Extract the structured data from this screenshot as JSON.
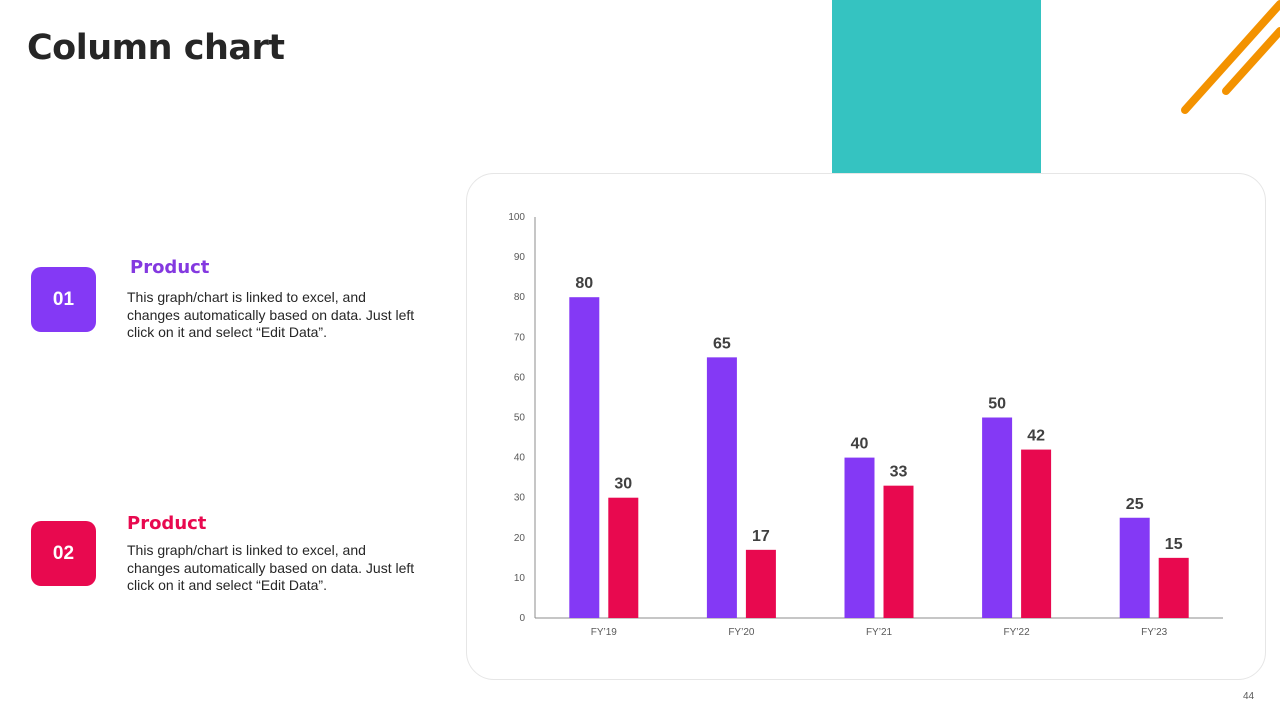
{
  "slide": {
    "title": "Column chart",
    "page_number": "44"
  },
  "colors": {
    "teal": "#35c3c1",
    "orange": "#f39200",
    "purple": "#8439f5",
    "crimson": "#e8094f",
    "purple_text": "#8439e0"
  },
  "items": [
    {
      "number": "01",
      "title": "Product",
      "text": "This graph/chart is linked to excel, and changes automatically based on data. Just left click on it and select “Edit Data”."
    },
    {
      "number": "02",
      "title": "Product",
      "text": "This graph/chart is linked to excel, and changes automatically based on data. Just left click on it and select “Edit Data”."
    }
  ],
  "chart_data": {
    "type": "bar",
    "title": "",
    "xlabel": "",
    "ylabel": "",
    "categories": [
      "FY’19",
      "FY’20",
      "FY’21",
      "FY’22",
      "FY’23"
    ],
    "series": [
      {
        "name": "Product 01",
        "color": "#8439f5",
        "values": [
          80,
          65,
          40,
          50,
          25
        ]
      },
      {
        "name": "Product 02",
        "color": "#e8094f",
        "values": [
          30,
          17,
          33,
          42,
          15
        ]
      }
    ],
    "ylim": [
      0,
      100
    ],
    "yticks": [
      0,
      10,
      20,
      30,
      40,
      50,
      60,
      70,
      80,
      90,
      100
    ],
    "data_labels": true,
    "grid": false,
    "legend": "none"
  }
}
